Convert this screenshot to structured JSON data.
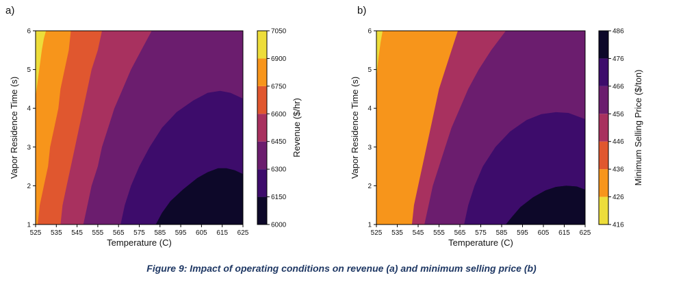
{
  "caption": "Figure 9: Impact of operating conditions on revenue (a) and minimum selling price (b)",
  "chart_data": [
    {
      "type": "contour",
      "panel_label": "a)",
      "xlabel": "Temperature (C)",
      "ylabel": "Vapor Residence Time (s)",
      "xlim": [
        525,
        625
      ],
      "ylim": [
        1,
        6
      ],
      "xticks": [
        "525",
        "535",
        "545",
        "555",
        "565",
        "575",
        "585",
        "595",
        "605",
        "615",
        "625"
      ],
      "yticks": [
        "1",
        "2",
        "3",
        "4",
        "5",
        "6"
      ],
      "colorbar": {
        "label": "Revenue ($/hr)",
        "levels": [
          6000,
          6150,
          6300,
          6450,
          6600,
          6750,
          6900,
          7050
        ],
        "tick_labels": [
          "6000",
          "6150",
          "6300",
          "6450",
          "6600",
          "6750",
          "6900",
          "7050"
        ],
        "colors": [
          "#0d0829",
          "#3d0c6b",
          "#6b1d6e",
          "#a8315f",
          "#e0572f",
          "#f7951b",
          "#eddd3a"
        ]
      },
      "boundaries": [
        {
          "between": [
            "6000-6150",
            "6150-6300"
          ],
          "points": [
            [
              583,
              1
            ],
            [
              586,
              1.3
            ],
            [
              590,
              1.6
            ],
            [
              596,
              1.9
            ],
            [
              603,
              2.2
            ],
            [
              608,
              2.35
            ],
            [
              613,
              2.45
            ],
            [
              617,
              2.45
            ],
            [
              621,
              2.4
            ],
            [
              625,
              2.3
            ]
          ]
        },
        {
          "between": [
            "6150-6300",
            "6300-6450"
          ],
          "points": [
            [
              566,
              1
            ],
            [
              568,
              1.5
            ],
            [
              571,
              2
            ],
            [
              575,
              2.5
            ],
            [
              580,
              3
            ],
            [
              586,
              3.5
            ],
            [
              593,
              3.9
            ],
            [
              601,
              4.2
            ],
            [
              608,
              4.4
            ],
            [
              614,
              4.45
            ],
            [
              619,
              4.4
            ],
            [
              625,
              4.25
            ]
          ]
        },
        {
          "between": [
            "6300-6450",
            "6450-6600"
          ],
          "points": [
            [
              548,
              1
            ],
            [
              550,
              1.5
            ],
            [
              552,
              2
            ],
            [
              555,
              2.5
            ],
            [
              557,
              3
            ],
            [
              560,
              3.5
            ],
            [
              563,
              4
            ],
            [
              567,
              4.5
            ],
            [
              571,
              5
            ],
            [
              576,
              5.5
            ],
            [
              581,
              6
            ]
          ]
        },
        {
          "between": [
            "6450-6600",
            "6600-6750"
          ],
          "points": [
            [
              537,
              1
            ],
            [
              538,
              1.5
            ],
            [
              540,
              2
            ],
            [
              542,
              2.5
            ],
            [
              544,
              3
            ],
            [
              546,
              3.5
            ],
            [
              548,
              4
            ],
            [
              550,
              4.5
            ],
            [
              552,
              5
            ],
            [
              555,
              5.5
            ],
            [
              557,
              6
            ]
          ]
        },
        {
          "between": [
            "6600-6750",
            "6750-6900"
          ],
          "points": [
            [
              526,
              1
            ],
            [
              527,
              1.5
            ],
            [
              529,
              2
            ],
            [
              531,
              2.5
            ],
            [
              532,
              3
            ],
            [
              534,
              3.5
            ],
            [
              536,
              4
            ],
            [
              537,
              4.5
            ],
            [
              539,
              5
            ],
            [
              541,
              5.5
            ],
            [
              542,
              6
            ]
          ]
        },
        {
          "between": [
            "6750-6900",
            "6900-7050"
          ],
          "points": [
            [
              525,
              4.3
            ],
            [
              526,
              4.7
            ],
            [
              527,
              5.1
            ],
            [
              528,
              5.5
            ],
            [
              529,
              5.8
            ],
            [
              530,
              6
            ]
          ]
        }
      ]
    },
    {
      "type": "contour",
      "panel_label": "b)",
      "xlabel": "Temperature (C)",
      "ylabel": "Vapor Residence Time (s)",
      "xlim": [
        525,
        625
      ],
      "ylim": [
        1,
        6
      ],
      "xticks": [
        "525",
        "535",
        "545",
        "555",
        "565",
        "575",
        "585",
        "595",
        "605",
        "615",
        "625"
      ],
      "yticks": [
        "1",
        "2",
        "3",
        "4",
        "5",
        "6"
      ],
      "colorbar": {
        "label": "Minimum Selling Price ($/ton)",
        "levels": [
          416,
          426,
          436,
          446,
          456,
          466,
          476,
          486
        ],
        "tick_labels": [
          "416",
          "426",
          "436",
          "446",
          "456",
          "466",
          "476",
          "486"
        ],
        "colors": [
          "#eddd3a",
          "#f7951b",
          "#e0572f",
          "#a8315f",
          "#6b1d6e",
          "#3d0c6b",
          "#0d0829"
        ]
      },
      "boundaries": [
        {
          "between": [
            "476-486",
            "466-476"
          ],
          "points": [
            [
              587,
              1
            ],
            [
              590,
              1.2
            ],
            [
              594,
              1.45
            ],
            [
              600,
              1.7
            ],
            [
              606,
              1.88
            ],
            [
              611,
              1.97
            ],
            [
              616,
              2
            ],
            [
              621,
              1.98
            ],
            [
              625,
              1.9
            ]
          ]
        },
        {
          "between": [
            "466-476",
            "456-466"
          ],
          "points": [
            [
              567,
              1
            ],
            [
              569,
              1.5
            ],
            [
              572,
              2
            ],
            [
              576,
              2.5
            ],
            [
              582,
              3
            ],
            [
              589,
              3.4
            ],
            [
              597,
              3.7
            ],
            [
              604,
              3.85
            ],
            [
              611,
              3.9
            ],
            [
              617,
              3.88
            ],
            [
              625,
              3.72
            ]
          ]
        },
        {
          "between": [
            "456-466",
            "446-456"
          ],
          "points": [
            [
              548,
              1
            ],
            [
              550,
              1.5
            ],
            [
              552,
              2
            ],
            [
              555,
              2.5
            ],
            [
              558,
              3
            ],
            [
              561,
              3.5
            ],
            [
              565,
              4
            ],
            [
              569,
              4.5
            ],
            [
              574,
              5
            ],
            [
              580,
              5.5
            ],
            [
              587,
              6
            ]
          ]
        },
        {
          "between": [
            "446-456",
            "436-446"
          ],
          "points": [
            [
              542,
              1
            ],
            [
              543,
              1.5
            ],
            [
              545,
              2
            ],
            [
              547,
              2.5
            ],
            [
              549,
              3
            ],
            [
              551,
              3.5
            ],
            [
              553,
              4
            ],
            [
              555,
              4.5
            ],
            [
              558,
              5
            ],
            [
              561,
              5.5
            ],
            [
              564,
              6
            ]
          ]
        },
        {
          "between": [
            "436-446",
            "426-436"
          ],
          "points": [
            [
              525,
              1
            ],
            [
              526,
              1.5
            ],
            [
              527,
              2
            ],
            [
              528,
              2.5
            ],
            [
              530,
              3
            ],
            [
              531,
              3.5
            ],
            [
              533,
              4
            ],
            [
              535,
              4.5
            ],
            [
              536,
              5
            ],
            [
              538,
              5.5
            ],
            [
              540,
              6
            ]
          ]
        },
        {
          "between": [
            "426-436",
            "416-426"
          ],
          "points": [
            [
              525,
              4.8
            ],
            [
              526,
              5.3
            ],
            [
              527,
              5.7
            ],
            [
              528,
              6
            ]
          ]
        }
      ]
    }
  ]
}
